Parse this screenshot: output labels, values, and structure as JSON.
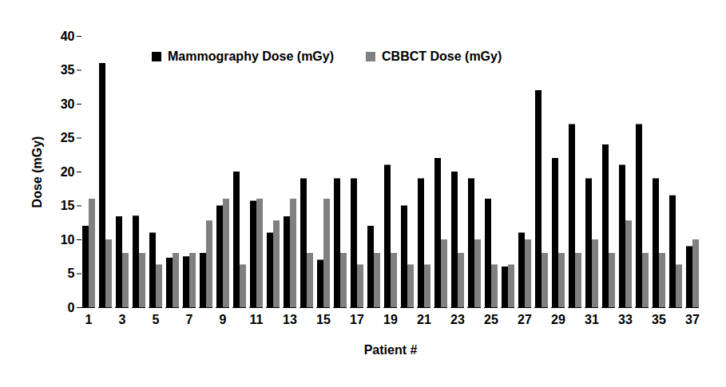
{
  "chart_data": {
    "type": "bar",
    "x_label": "Patient #",
    "y_label": "Dose (mGy)",
    "categories": [
      "1",
      null,
      "3",
      null,
      "5",
      null,
      "7",
      null,
      "9",
      null,
      "11",
      null,
      "13",
      null,
      "15",
      null,
      "17",
      null,
      "19",
      null,
      "21",
      null,
      "23",
      null,
      "25",
      null,
      "27",
      null,
      "29",
      null,
      "31",
      null,
      "33",
      null,
      "35",
      null,
      "37"
    ],
    "series": [
      {
        "name": "Mammography Dose (mGy)",
        "color": "#000000",
        "values": [
          12,
          36,
          13.4,
          13.5,
          11,
          7.3,
          7.5,
          8,
          15,
          20,
          15.7,
          11,
          13.4,
          19,
          7,
          19,
          19,
          12,
          21,
          15,
          19,
          22,
          20,
          19,
          16,
          6,
          11,
          32,
          22,
          27,
          19,
          24,
          21,
          27,
          19,
          16.5,
          9
        ]
      },
      {
        "name": "CBBCT Dose (mGy)",
        "color": "#808080",
        "values": [
          16,
          10,
          8,
          8,
          6.3,
          8,
          8,
          12.8,
          16,
          6.3,
          16,
          12.8,
          16,
          8,
          16,
          8,
          6.3,
          8,
          8,
          6.3,
          6.3,
          10,
          8,
          10,
          6.3,
          6.3,
          10,
          8,
          8,
          8,
          10,
          8,
          12.8,
          8,
          8,
          6.3,
          10
        ]
      }
    ],
    "ylim": [
      0,
      40
    ],
    "yticks": [
      0,
      5,
      10,
      15,
      20,
      25,
      30,
      35,
      40
    ],
    "grid": false,
    "legend": "top"
  }
}
